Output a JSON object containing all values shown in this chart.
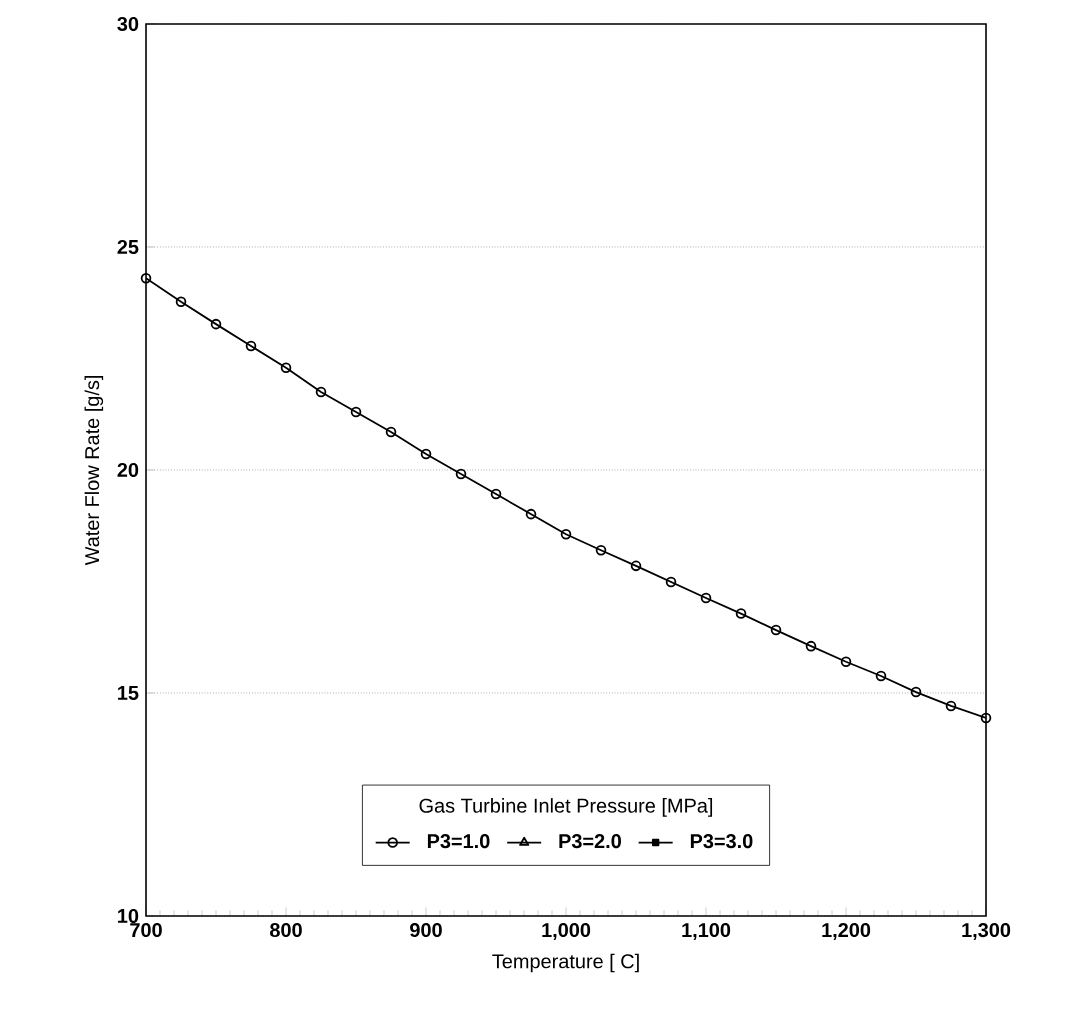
{
  "chart_data": {
    "type": "line",
    "xlabel": "Temperature [ C]",
    "ylabel": "Water Flow Rate [g/s]",
    "legend_title": "Gas Turbine Inlet Pressure [MPa]",
    "x": [
      700,
      725,
      750,
      775,
      800,
      825,
      850,
      875,
      900,
      925,
      950,
      975,
      1000,
      1025,
      1050,
      1075,
      1100,
      1125,
      1150,
      1175,
      1200,
      1225,
      1250,
      1275,
      1300
    ],
    "series": [
      {
        "name": "P3=1.0",
        "color": "#000000",
        "marker": "circle",
        "values": [
          24.3,
          23.77,
          23.27,
          22.78,
          22.29,
          21.75,
          21.3,
          20.85,
          20.36,
          19.91,
          19.46,
          19.01,
          18.56,
          18.2,
          17.85,
          17.49,
          17.13,
          16.78,
          16.41,
          16.05,
          15.7,
          15.38,
          15.02,
          14.71,
          14.44
        ]
      },
      {
        "name": "P3=2.0",
        "color": "#000000",
        "marker": "triangle",
        "values": [
          null,
          null,
          null,
          null,
          null,
          null,
          null,
          null,
          null,
          null,
          null,
          null,
          null,
          null,
          null,
          null,
          null,
          null,
          null,
          null,
          null,
          null,
          null,
          null,
          null
        ]
      },
      {
        "name": "P3=3.0",
        "color": "#000000",
        "marker": "square",
        "values": [
          null,
          null,
          null,
          null,
          null,
          null,
          null,
          null,
          null,
          null,
          null,
          null,
          null,
          null,
          null,
          null,
          null,
          null,
          null,
          null,
          null,
          null,
          null,
          null,
          null
        ]
      }
    ],
    "xlim": [
      700,
      1300
    ],
    "xticks": [
      700,
      800,
      900,
      {
        "value": 1000,
        "label": "1,000"
      },
      {
        "value": 1100,
        "label": "1,100"
      },
      {
        "value": 1200,
        "label": "1,200"
      },
      {
        "value": 1300,
        "label": "1,300"
      }
    ],
    "ylim": [
      10,
      30
    ],
    "yticks": [
      10,
      15,
      20,
      25,
      30
    ],
    "grid": "y",
    "legend": "bottom",
    "line_style": "solid"
  }
}
